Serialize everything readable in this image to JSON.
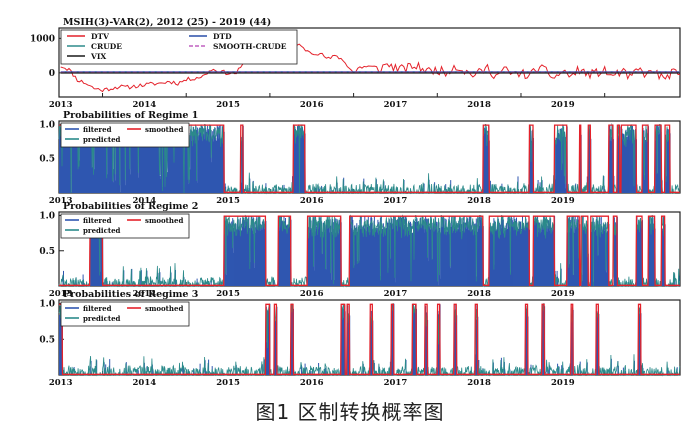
{
  "figure_caption": "图1  区制转换概率图",
  "colors": {
    "dtv": "#e4222b",
    "dtd": "#2a4ea8",
    "crude": "#2e8b8b",
    "smooth": "#c060c0",
    "vix": "#1a1a1a",
    "filtered": "#2f56b0",
    "smoothed": "#e4222b",
    "predicted": "#2b8a8a",
    "frame": "#222222"
  },
  "chart_data": [
    {
      "type": "line",
      "title": "MSIH(3)-VAR(2), 2012 (25) - 2019 (44)",
      "x_tick_labels": [
        "2013",
        "2014",
        "2015",
        "2016",
        "2017",
        "2018",
        "2019"
      ],
      "xlim": [
        2012.48,
        2019.9
      ],
      "ylim": [
        -700,
        1300
      ],
      "y_tick_labels": [
        "1000",
        "0"
      ],
      "legend": {
        "placement": "top-left",
        "entries": [
          "DTV",
          "DTD",
          "CRUDE",
          "SMOOTH-CRUDE",
          "VIX"
        ]
      },
      "series": [
        {
          "name": "DTV",
          "x": [
            2012.5,
            2012.6,
            2012.7,
            2012.8,
            2012.9,
            2013.0,
            2013.1,
            2013.2,
            2013.3,
            2013.4,
            2013.5,
            2013.6,
            2013.7,
            2013.8,
            2013.9,
            2014.0,
            2014.1,
            2014.2,
            2014.3,
            2014.4,
            2014.5,
            2014.6,
            2014.7,
            2014.8,
            2014.9,
            2015.0,
            2015.1,
            2015.2,
            2015.3,
            2015.4,
            2015.5,
            2015.6,
            2015.7,
            2015.8,
            2015.9,
            2016.0,
            2016.1,
            2016.2,
            2016.3,
            2016.4,
            2016.5,
            2016.6,
            2016.7,
            2016.8,
            2016.9,
            2017.0,
            2017.1,
            2017.2,
            2017.3,
            2017.4,
            2017.5,
            2017.6,
            2017.7,
            2017.8,
            2017.9,
            2018.0,
            2018.1,
            2018.2,
            2018.3,
            2018.4,
            2018.5,
            2018.6,
            2018.7,
            2018.8,
            2018.9,
            2019.0,
            2019.1,
            2019.2,
            2019.3,
            2019.4,
            2019.5,
            2019.6,
            2019.7,
            2019.8,
            2019.9
          ],
          "y": [
            200,
            100,
            -200,
            -300,
            -450,
            -500,
            -450,
            -400,
            -420,
            -380,
            -350,
            -320,
            -300,
            -250,
            -300,
            -200,
            -150,
            -100,
            100,
            50,
            -10,
            0,
            300,
            500,
            650,
            900,
            950,
            850,
            900,
            700,
            600,
            550,
            400,
            500,
            300,
            0,
            200,
            150,
            100,
            250,
            150,
            100,
            200,
            150,
            50,
            100,
            0,
            200,
            100,
            -50,
            0,
            150,
            -100,
            100,
            -50,
            0,
            -100,
            150,
            50,
            -150,
            50,
            -100,
            100,
            -50,
            0,
            50,
            -100,
            50,
            -150,
            100,
            -50,
            50,
            -200,
            0,
            -50
          ]
        },
        {
          "name": "DTD",
          "x": [
            2012.5,
            2019.9
          ],
          "y": [
            30,
            30
          ]
        },
        {
          "name": "CRUDE",
          "x": [
            2012.5,
            2019.9
          ],
          "y": [
            0,
            0
          ]
        },
        {
          "name": "SMOOTH-CRUDE",
          "x": [
            2012.5,
            2019.9
          ],
          "y": [
            15,
            15
          ]
        },
        {
          "name": "VIX",
          "x": [
            2012.5,
            2019.9
          ],
          "y": [
            -5,
            -5
          ]
        }
      ]
    },
    {
      "type": "area",
      "title": "Probabilities of Regime 1",
      "x_tick_labels": [
        "2013",
        "2014",
        "2015",
        "2016",
        "2017",
        "2018",
        "2019"
      ],
      "xlim": [
        2012.48,
        2019.9
      ],
      "ylim": [
        0,
        1.05
      ],
      "y_tick_labels": [
        "1.0",
        "0.5"
      ],
      "legend": {
        "placement": "top-left",
        "entries": [
          "filtered",
          "smoothed",
          "predicted"
        ]
      },
      "regime_on": [
        [
          2012.48,
          2014.45
        ],
        [
          2014.65,
          2014.68
        ],
        [
          2015.28,
          2015.42
        ],
        [
          2017.55,
          2017.62
        ],
        [
          2018.1,
          2018.15
        ],
        [
          2018.4,
          2018.55
        ],
        [
          2018.7,
          2018.72
        ],
        [
          2018.8,
          2018.83
        ],
        [
          2019.05,
          2019.1
        ],
        [
          2019.15,
          2019.18
        ],
        [
          2019.2,
          2019.38
        ],
        [
          2019.45,
          2019.52
        ],
        [
          2019.6,
          2019.68
        ],
        [
          2019.72,
          2019.78
        ]
      ]
    },
    {
      "type": "area",
      "title": "Probabilities of Regime 2",
      "x_tick_labels": [
        "2013",
        "2014",
        "2015",
        "2016",
        "2017",
        "2018",
        "2019"
      ],
      "xlim": [
        2012.48,
        2019.9
      ],
      "ylim": [
        0,
        1.05
      ],
      "y_tick_labels": [
        "1.0",
        "0.5"
      ],
      "legend": {
        "placement": "top-left",
        "entries": [
          "filtered",
          "smoothed",
          "predicted"
        ]
      },
      "regime_on": [
        [
          2012.85,
          2013.0
        ],
        [
          2014.45,
          2014.95
        ],
        [
          2015.1,
          2015.25
        ],
        [
          2015.45,
          2015.85
        ],
        [
          2015.95,
          2017.55
        ],
        [
          2017.62,
          2018.1
        ],
        [
          2018.15,
          2018.4
        ],
        [
          2018.55,
          2018.7
        ],
        [
          2018.72,
          2018.8
        ],
        [
          2018.83,
          2019.05
        ],
        [
          2019.1,
          2019.15
        ],
        [
          2019.38,
          2019.45
        ],
        [
          2019.52,
          2019.6
        ],
        [
          2019.68,
          2019.72
        ]
      ]
    },
    {
      "type": "area",
      "title": "Probabilities of Regime 3",
      "x_tick_labels": [
        "2013",
        "2014",
        "2015",
        "2016",
        "2017",
        "2018",
        "2019"
      ],
      "xlim": [
        2012.48,
        2019.9
      ],
      "ylim": [
        0,
        1.05
      ],
      "y_tick_labels": [
        "1.0",
        "0.5"
      ],
      "legend": {
        "placement": "top-left",
        "entries": [
          "filtered",
          "smoothed",
          "predicted"
        ]
      },
      "regime_on": [
        [
          2012.48,
          2012.52
        ],
        [
          2014.95,
          2015.0
        ],
        [
          2015.05,
          2015.08
        ],
        [
          2015.25,
          2015.28
        ],
        [
          2015.85,
          2015.9
        ],
        [
          2015.92,
          2015.95
        ],
        [
          2016.2,
          2016.23
        ],
        [
          2016.45,
          2016.48
        ],
        [
          2016.7,
          2016.75
        ],
        [
          2016.85,
          2016.88
        ],
        [
          2017.0,
          2017.03
        ],
        [
          2017.2,
          2017.23
        ],
        [
          2017.45,
          2017.48
        ],
        [
          2018.05,
          2018.08
        ],
        [
          2018.25,
          2018.28
        ],
        [
          2018.6,
          2018.62
        ],
        [
          2018.9,
          2018.93
        ],
        [
          2019.4,
          2019.43
        ]
      ]
    }
  ]
}
